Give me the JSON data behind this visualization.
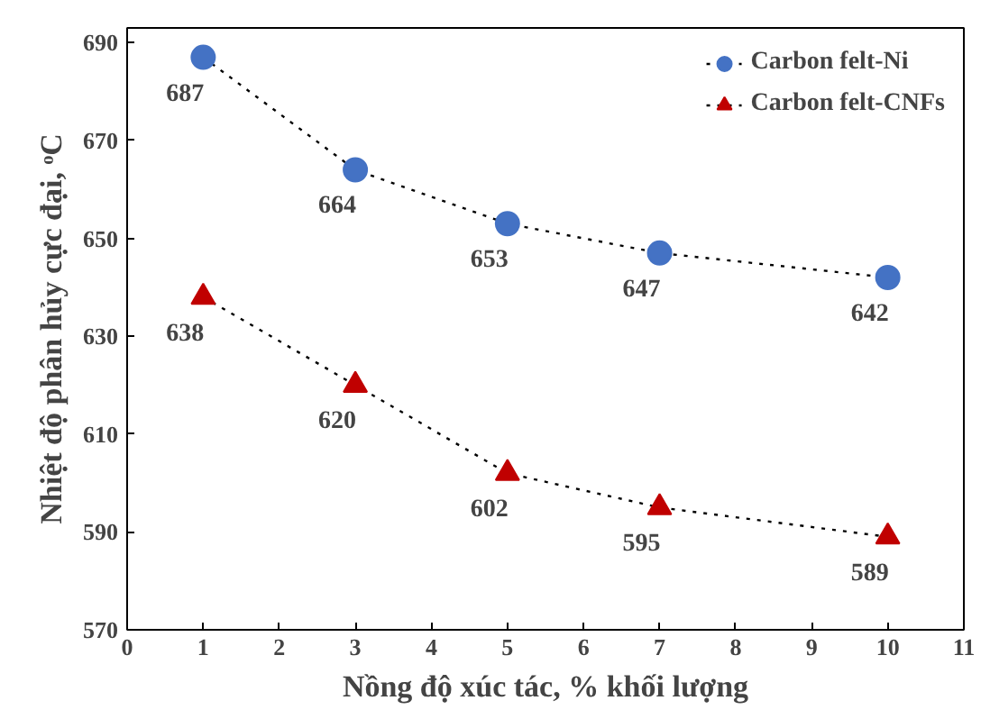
{
  "chart_data": {
    "type": "line",
    "xlabel": "Nồng độ xúc tác, % khối lượng",
    "ylabel": "Nhiệt độ phân hủy cực đại, ᵒC",
    "x": [
      1,
      3,
      5,
      7,
      10
    ],
    "series": [
      {
        "name": "Carbon felt-Ni",
        "color": "#4472c4",
        "marker": "circle",
        "values": [
          687,
          664,
          653,
          647,
          642
        ]
      },
      {
        "name": "Carbon felt-CNFs",
        "color": "#c00000",
        "marker": "triangle",
        "values": [
          638,
          620,
          602,
          595,
          589
        ]
      }
    ],
    "xlim": [
      0,
      11
    ],
    "xticks": [
      0,
      1,
      2,
      3,
      4,
      5,
      6,
      7,
      8,
      9,
      10,
      11
    ],
    "ylim": [
      570,
      693
    ],
    "yticks": [
      570,
      590,
      610,
      630,
      650,
      670,
      690
    ],
    "line_style": "dotted",
    "data_labels": true,
    "grid": false,
    "legend": "top right"
  }
}
